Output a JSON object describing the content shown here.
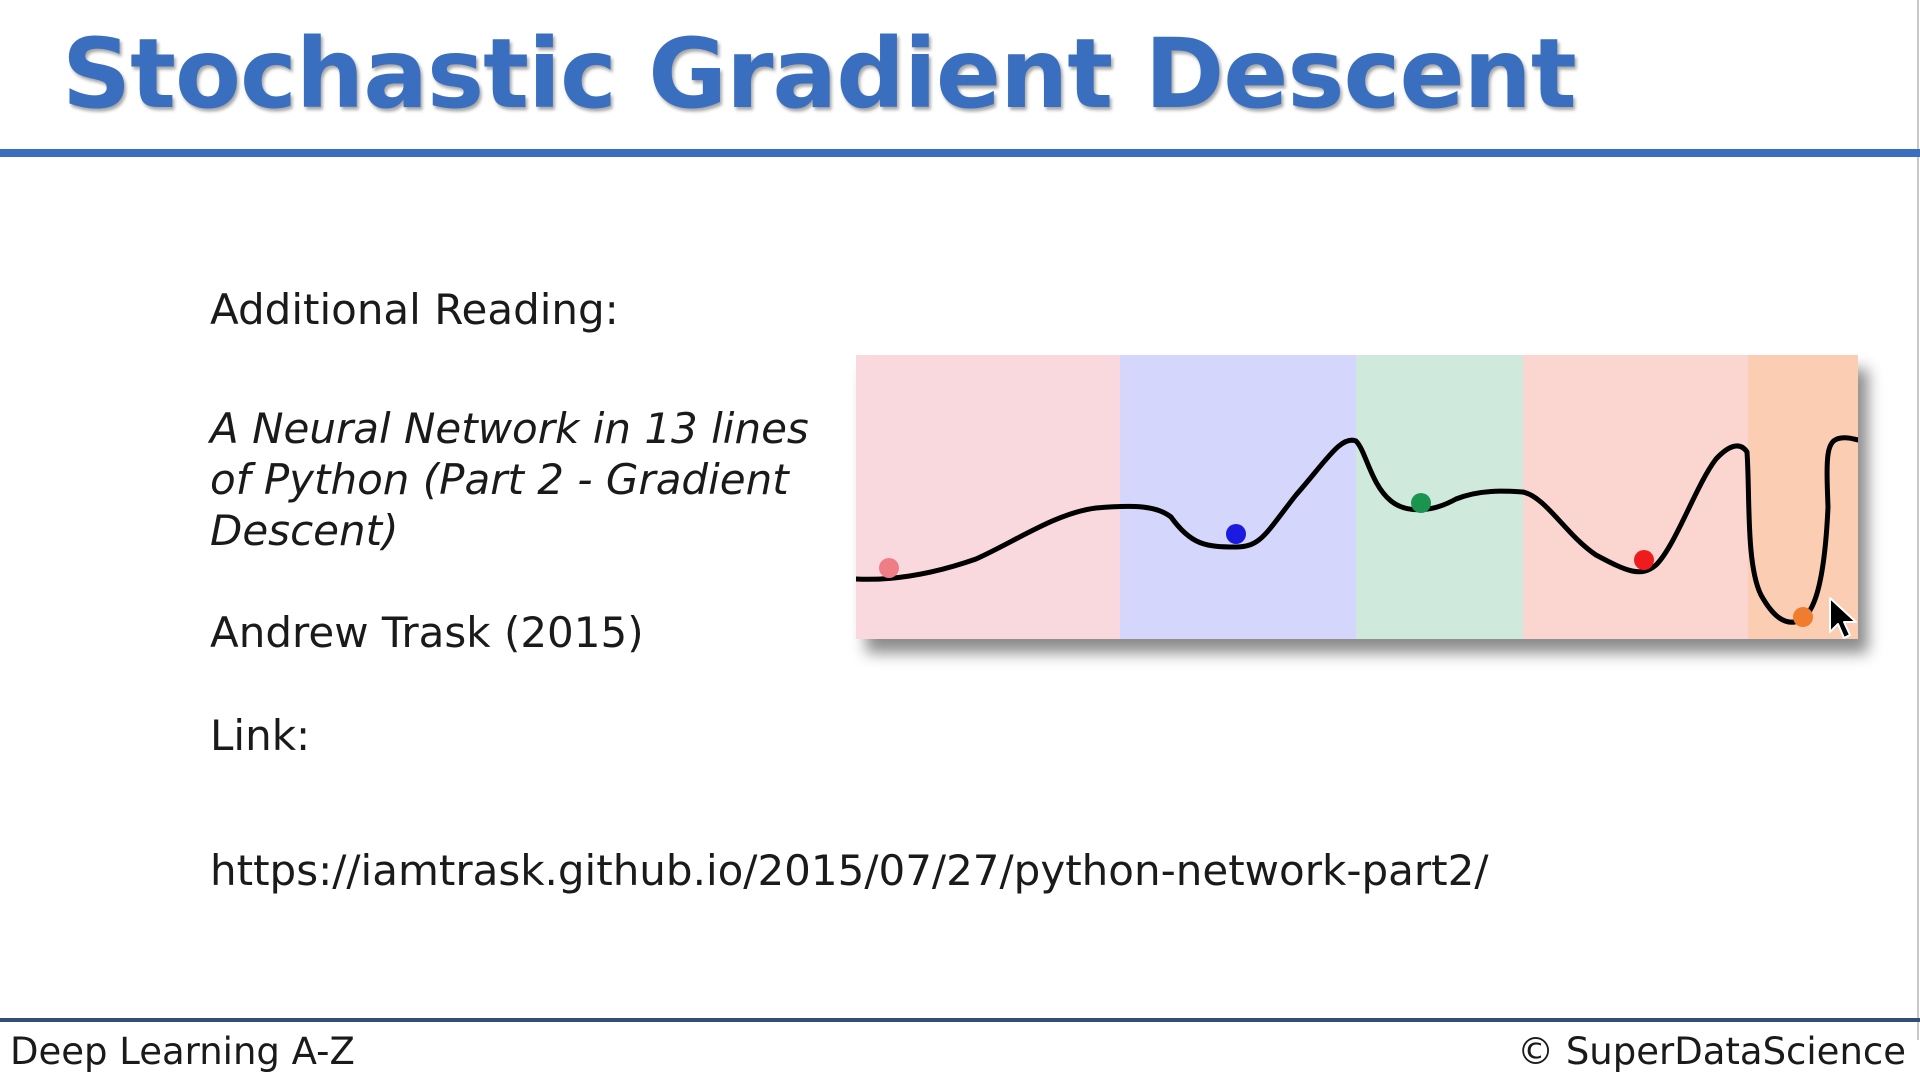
{
  "slide": {
    "title": "Stochastic Gradient Descent",
    "heading": "Additional Reading:",
    "article_lines": [
      "A Neural Network in 13 lines",
      "of Python (Part 2 - Gradient",
      "Descent)"
    ],
    "author": "Andrew Trask (2015)",
    "link_label": "Link:",
    "url": "https://iamtrask.github.io/2015/07/27/python-network-part2/"
  },
  "footer": {
    "course": "Deep Learning A-Z",
    "copyright": "© SuperDataScience"
  },
  "colors": {
    "title": "#3a6fbf",
    "rule": "#3a6fbf",
    "footer_rule": "#2f4f74"
  },
  "illustration": {
    "bands": [
      {
        "color": "#fad9de"
      },
      {
        "color": "#d5d6fb"
      },
      {
        "color": "#cfe9dc"
      },
      {
        "color": "#fbd6d0"
      },
      {
        "color": "#fbcdb3"
      }
    ],
    "balls": [
      {
        "color": "#ee7d86"
      },
      {
        "color": "#1a1ae0"
      },
      {
        "color": "#1a9550"
      },
      {
        "color": "#ee1c1c"
      },
      {
        "color": "#f07c2e"
      }
    ]
  },
  "icons": [
    "mouse-cursor-icon"
  ]
}
